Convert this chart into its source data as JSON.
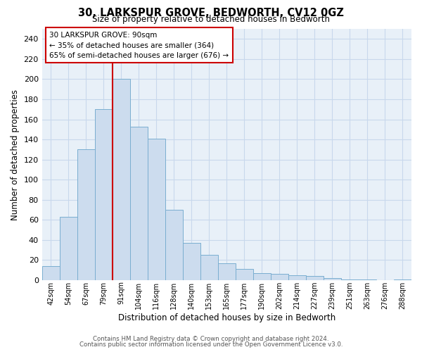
{
  "title": "30, LARKSPUR GROVE, BEDWORTH, CV12 0GZ",
  "subtitle": "Size of property relative to detached houses in Bedworth",
  "xlabel": "Distribution of detached houses by size in Bedworth",
  "ylabel": "Number of detached properties",
  "bar_labels": [
    "42sqm",
    "54sqm",
    "67sqm",
    "79sqm",
    "91sqm",
    "104sqm",
    "116sqm",
    "128sqm",
    "140sqm",
    "153sqm",
    "165sqm",
    "177sqm",
    "190sqm",
    "202sqm",
    "214sqm",
    "227sqm",
    "239sqm",
    "251sqm",
    "263sqm",
    "276sqm",
    "288sqm"
  ],
  "bar_heights": [
    14,
    63,
    130,
    170,
    200,
    153,
    141,
    70,
    37,
    25,
    17,
    11,
    7,
    6,
    5,
    4,
    2,
    1,
    1,
    0,
    1
  ],
  "bar_color": "#ccdcee",
  "bar_edge_color": "#7aaed0",
  "highlight_bar_index": 4,
  "vline_color": "#cc0000",
  "ylim": [
    0,
    250
  ],
  "yticks": [
    0,
    20,
    40,
    60,
    80,
    100,
    120,
    140,
    160,
    180,
    200,
    220,
    240
  ],
  "annotation_title": "30 LARKSPUR GROVE: 90sqm",
  "annotation_line1": "← 35% of detached houses are smaller (364)",
  "annotation_line2": "65% of semi-detached houses are larger (676) →",
  "footer_line1": "Contains HM Land Registry data © Crown copyright and database right 2024.",
  "footer_line2": "Contains public sector information licensed under the Open Government Licence v3.0.",
  "background_color": "#ffffff",
  "grid_color": "#c8d8ec"
}
